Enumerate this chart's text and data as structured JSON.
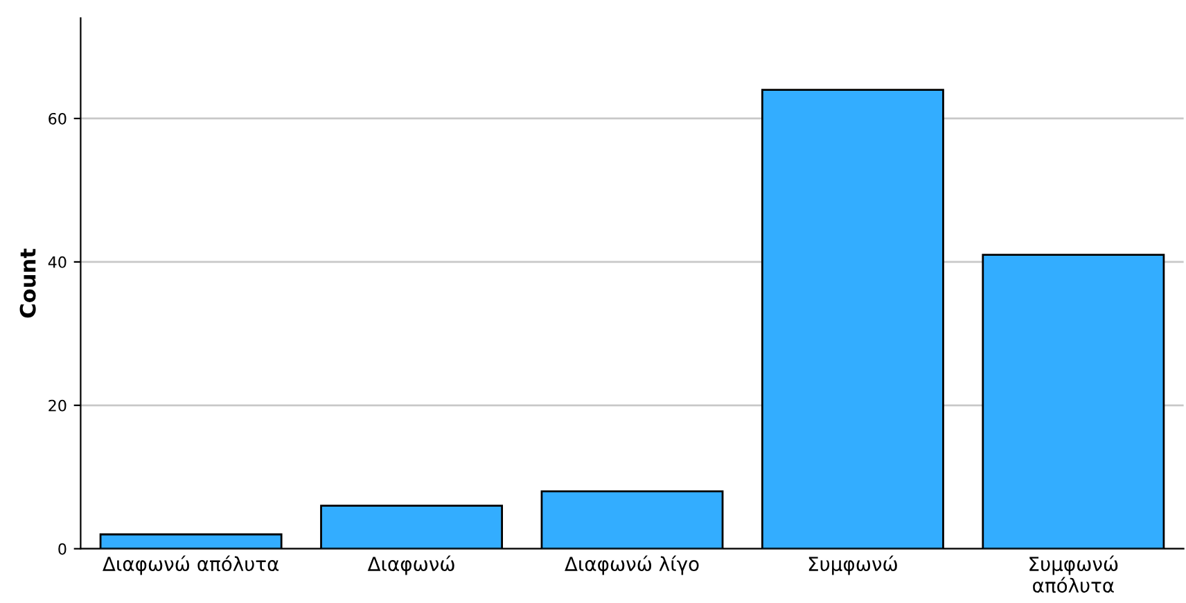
{
  "chart_data": {
    "type": "bar",
    "ylabel": "Count",
    "categories": [
      "Διαφωνώ απόλυτα",
      "Διαφωνώ",
      "Διαφωνώ λίγο",
      "Συμφωνώ",
      "Συμφωνώ\nαπόλυτα"
    ],
    "values": [
      2,
      6,
      8,
      64,
      41
    ],
    "color": "#33adff",
    "ylim": [
      0,
      74
    ],
    "yticks": [
      0,
      20,
      40,
      60
    ],
    "grid": "y"
  }
}
